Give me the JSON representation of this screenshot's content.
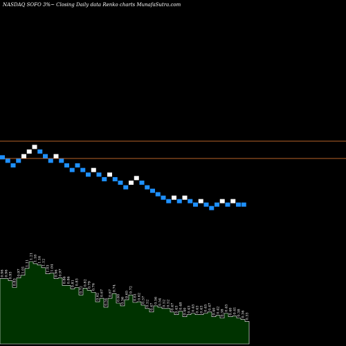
{
  "header": {
    "title": "NASDAQ SOFO 3%~   Closing Daily data  Renko  charts MunafaSutra.com"
  },
  "chart_data": {
    "type": "renko",
    "title": "NASDAQ SOFO 3%~   Closing Daily data  Renko  charts MunafaSutra.com",
    "brick_size_label": "3%",
    "colors": {
      "background": "#000000",
      "up_brick": "#ffffff",
      "down_brick": "#1e90ff",
      "reference_line": "#b8652a",
      "volume_area": "#003300",
      "volume_outline": "#ffffff"
    },
    "reference_levels": [
      1.42,
      1.27
    ],
    "bricks": [
      {
        "dir": "down",
        "level": 1.28
      },
      {
        "dir": "down",
        "level": 1.25
      },
      {
        "dir": "down",
        "level": 1.21
      },
      {
        "dir": "down",
        "level": 1.25
      },
      {
        "dir": "up",
        "level": 1.29
      },
      {
        "dir": "up",
        "level": 1.33
      },
      {
        "dir": "up",
        "level": 1.37
      },
      {
        "dir": "down",
        "level": 1.33
      },
      {
        "dir": "down",
        "level": 1.29
      },
      {
        "dir": "down",
        "level": 1.25
      },
      {
        "dir": "up",
        "level": 1.29
      },
      {
        "dir": "down",
        "level": 1.25
      },
      {
        "dir": "down",
        "level": 1.21
      },
      {
        "dir": "down",
        "level": 1.17
      },
      {
        "dir": "down",
        "level": 1.21
      },
      {
        "dir": "down",
        "level": 1.17
      },
      {
        "dir": "down",
        "level": 1.13
      },
      {
        "dir": "up",
        "level": 1.17
      },
      {
        "dir": "down",
        "level": 1.13
      },
      {
        "dir": "down",
        "level": 1.09
      },
      {
        "dir": "up",
        "level": 1.13
      },
      {
        "dir": "down",
        "level": 1.09
      },
      {
        "dir": "down",
        "level": 1.06
      },
      {
        "dir": "down",
        "level": 1.02
      },
      {
        "dir": "up",
        "level": 1.06
      },
      {
        "dir": "up",
        "level": 1.1
      },
      {
        "dir": "down",
        "level": 1.06
      },
      {
        "dir": "down",
        "level": 1.02
      },
      {
        "dir": "down",
        "level": 0.99
      },
      {
        "dir": "down",
        "level": 0.96
      },
      {
        "dir": "down",
        "level": 0.93
      },
      {
        "dir": "down",
        "level": 0.9
      },
      {
        "dir": "up",
        "level": 0.93
      },
      {
        "dir": "down",
        "level": 0.9
      },
      {
        "dir": "up",
        "level": 0.93
      },
      {
        "dir": "down",
        "level": 0.9
      },
      {
        "dir": "down",
        "level": 0.87
      },
      {
        "dir": "up",
        "level": 0.9
      },
      {
        "dir": "down",
        "level": 0.87
      },
      {
        "dir": "down",
        "level": 0.84
      },
      {
        "dir": "down",
        "level": 0.87
      },
      {
        "dir": "up",
        "level": 0.9
      },
      {
        "dir": "down",
        "level": 0.87
      },
      {
        "dir": "up",
        "level": 0.9
      },
      {
        "dir": "down",
        "level": 0.87
      },
      {
        "dir": "down",
        "level": 0.87
      }
    ],
    "volume_bars": [
      {
        "label": "0.96",
        "value": 0.96
      },
      {
        "label": "0.96",
        "value": 0.96
      },
      {
        "label": "0.93",
        "value": 0.93
      },
      {
        "label": "0.83",
        "value": 0.83
      },
      {
        "label": "0.97",
        "value": 0.97
      },
      {
        "label": "1.01",
        "value": 1.01
      },
      {
        "label": "1.11",
        "value": 1.11
      },
      {
        "label": "1.21",
        "value": 1.21
      },
      {
        "label": "1.18",
        "value": 1.18
      },
      {
        "label": "1.16",
        "value": 1.16
      },
      {
        "label": "1.12",
        "value": 1.12
      },
      {
        "label": "1.03",
        "value": 1.03
      },
      {
        "label": "1.04",
        "value": 1.04
      },
      {
        "label": "0.96",
        "value": 0.96
      },
      {
        "label": "0.97",
        "value": 0.97
      },
      {
        "label": "0.86",
        "value": 0.86
      },
      {
        "label": "0.86",
        "value": 0.86
      },
      {
        "label": "0.81",
        "value": 0.81
      },
      {
        "label": "0.83",
        "value": 0.83
      },
      {
        "label": "0.72",
        "value": 0.72
      },
      {
        "label": "0.82",
        "value": 0.82
      },
      {
        "label": "0.79",
        "value": 0.79
      },
      {
        "label": "0.76",
        "value": 0.76
      },
      {
        "label": "0.62",
        "value": 0.62
      },
      {
        "label": "0.67",
        "value": 0.67
      },
      {
        "label": "0.54",
        "value": 0.54
      },
      {
        "label": "0.67",
        "value": 0.67
      },
      {
        "label": "0.74",
        "value": 0.74
      },
      {
        "label": "0.60",
        "value": 0.6
      },
      {
        "label": "0.56",
        "value": 0.56
      },
      {
        "label": "0.65",
        "value": 0.65
      },
      {
        "label": "0.72",
        "value": 0.72
      },
      {
        "label": "0.61",
        "value": 0.61
      },
      {
        "label": "0.62",
        "value": 0.62
      },
      {
        "label": "0.57",
        "value": 0.57
      },
      {
        "label": "0.52",
        "value": 0.52
      },
      {
        "label": "0.47",
        "value": 0.47
      },
      {
        "label": "0.56",
        "value": 0.56
      },
      {
        "label": "0.54",
        "value": 0.54
      },
      {
        "label": "0.52",
        "value": 0.52
      },
      {
        "label": "0.52",
        "value": 0.52
      },
      {
        "label": "0.47",
        "value": 0.47
      },
      {
        "label": "0.43",
        "value": 0.43
      },
      {
        "label": "0.48",
        "value": 0.48
      },
      {
        "label": "0.40",
        "value": 0.4
      },
      {
        "label": "0.43",
        "value": 0.43
      },
      {
        "label": "0.45",
        "value": 0.45
      },
      {
        "label": "0.43",
        "value": 0.43
      },
      {
        "label": "0.43",
        "value": 0.43
      },
      {
        "label": "0.45",
        "value": 0.45
      },
      {
        "label": "0.47",
        "value": 0.47
      },
      {
        "label": "0.40",
        "value": 0.4
      },
      {
        "label": "0.42",
        "value": 0.42
      },
      {
        "label": "0.38",
        "value": 0.38
      },
      {
        "label": "0.45",
        "value": 0.45
      },
      {
        "label": "0.40",
        "value": 0.4
      },
      {
        "label": "0.41",
        "value": 0.41
      },
      {
        "label": "0.38",
        "value": 0.38
      },
      {
        "label": "0.36",
        "value": 0.36
      },
      {
        "label": "0.33",
        "value": 0.33
      }
    ]
  }
}
